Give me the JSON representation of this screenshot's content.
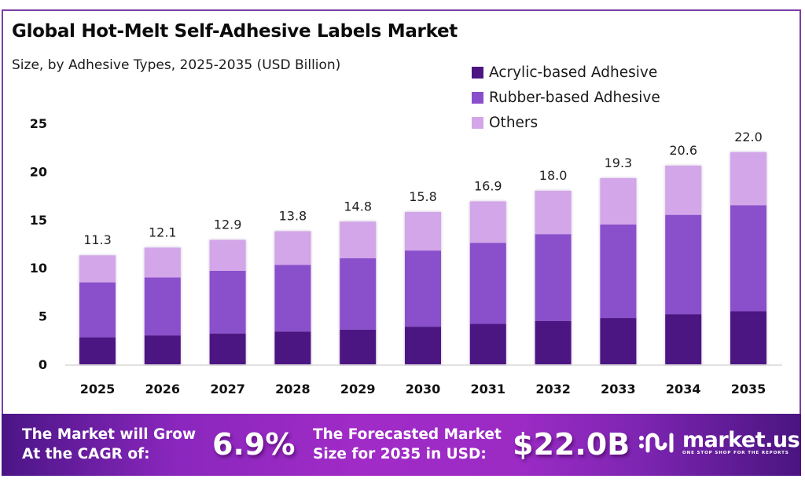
{
  "header": {
    "title": "Global Hot-Melt Self-Adhesive Labels Market",
    "subtitle": "Size, by Adhesive Types, 2025-2035 (USD Billion)"
  },
  "colors": {
    "acrylic": "#4c1582",
    "rubber": "#8a4fcb",
    "others": "#d2a6e8",
    "frame": "#7b3fa8",
    "banner": "#9b2bc4"
  },
  "chart_data": {
    "type": "bar",
    "stacked": true,
    "title": "Global Hot-Melt Self-Adhesive Labels Market",
    "subtitle": "Size, by Adhesive Types, 2025-2035 (USD Billion)",
    "xlabel": "",
    "ylabel": "",
    "ylim": [
      0,
      25
    ],
    "yticks": [
      0,
      5,
      10,
      15,
      20,
      25
    ],
    "grid": false,
    "legend_position": "top-right",
    "categories": [
      "2025",
      "2026",
      "2027",
      "2028",
      "2029",
      "2030",
      "2031",
      "2032",
      "2033",
      "2034",
      "2035"
    ],
    "series": [
      {
        "name": "Acrylic-based Adhesive",
        "color": "#4c1582",
        "values": [
          2.8,
          3.0,
          3.2,
          3.4,
          3.6,
          3.9,
          4.2,
          4.5,
          4.8,
          5.2,
          5.5
        ]
      },
      {
        "name": "Rubber-based Adhesive",
        "color": "#8a4fcb",
        "values": [
          5.7,
          6.0,
          6.5,
          6.9,
          7.4,
          7.9,
          8.4,
          9.0,
          9.7,
          10.3,
          11.0
        ]
      },
      {
        "name": "Others",
        "color": "#d2a6e8",
        "values": [
          2.8,
          3.1,
          3.2,
          3.5,
          3.8,
          4.0,
          4.3,
          4.5,
          4.8,
          5.1,
          5.5
        ]
      }
    ],
    "totals": [
      "11.3",
      "12.1",
      "12.9",
      "13.8",
      "14.8",
      "15.8",
      "16.9",
      "18.0",
      "19.3",
      "20.6",
      "22.0"
    ]
  },
  "banner": {
    "cagr_text_line1": "The Market will Grow",
    "cagr_text_line2": "At the CAGR of:",
    "cagr_value": "6.9%",
    "forecast_text_line1": "The Forecasted Market",
    "forecast_text_line2": "Size for 2035 in USD:",
    "forecast_value": "$22.0B",
    "logo_name": "market.us",
    "logo_tagline": "ONE STOP SHOP FOR THE REPORTS"
  }
}
